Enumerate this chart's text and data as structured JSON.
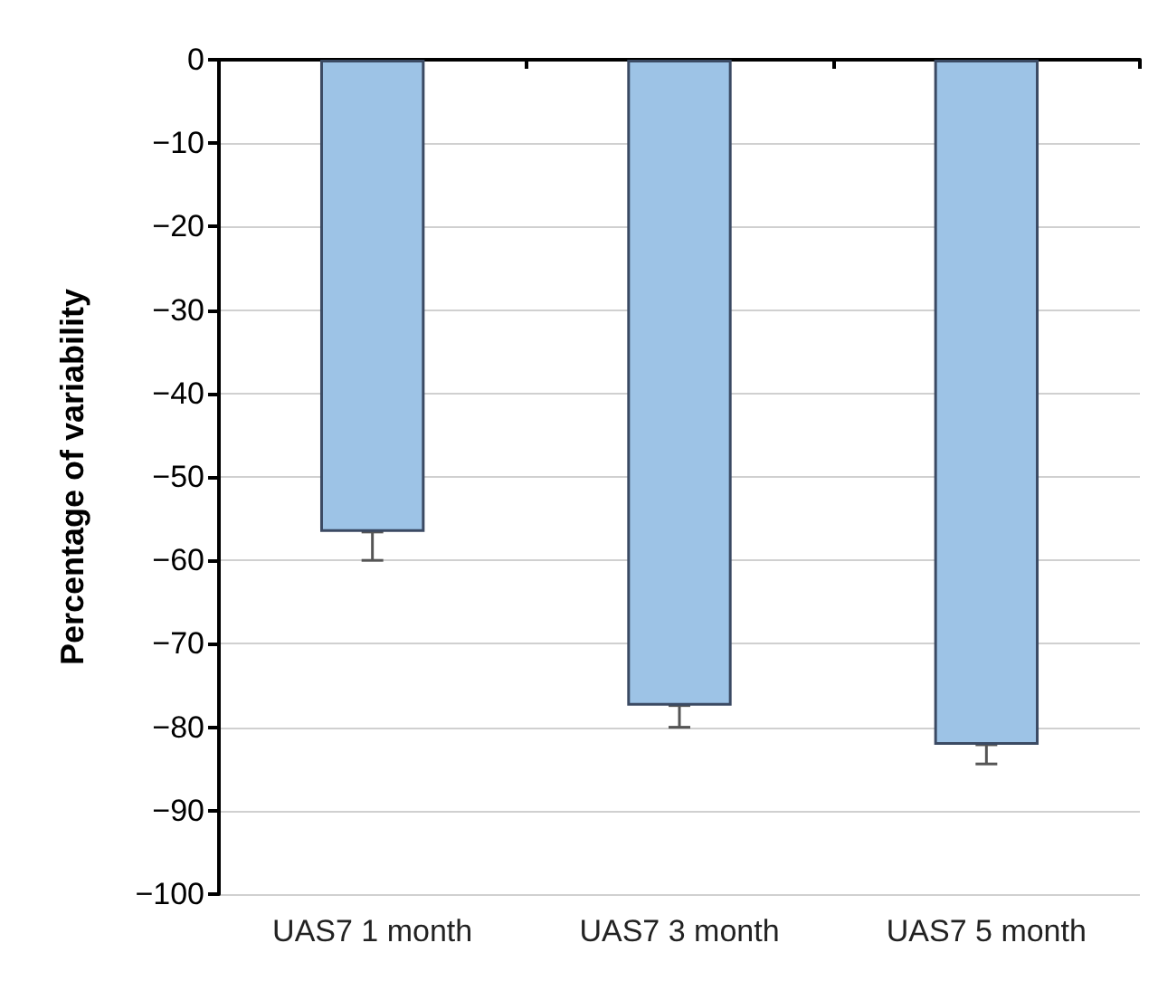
{
  "chart_data": {
    "type": "bar",
    "ylabel": "Percentage of variability",
    "categories": [
      "UAS7 1 month",
      "UAS7 3 month",
      "UAS7 5 month"
    ],
    "values": [
      -56.6,
      -77.4,
      -82.1
    ],
    "errors": [
      [
        -60,
        -56.6
      ],
      [
        -80,
        -77.4
      ],
      [
        -84.4,
        -82.1
      ]
    ],
    "color": "#9dc3e6",
    "ylim": [
      -100,
      0
    ],
    "yticks": [
      -100,
      -90,
      -80,
      -70,
      -60,
      -50,
      -40,
      -30,
      -20,
      -10,
      0
    ],
    "grid": "y"
  }
}
